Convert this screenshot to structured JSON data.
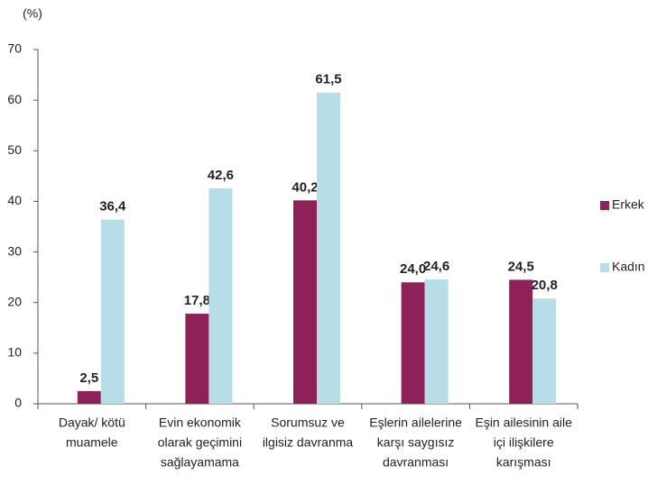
{
  "chart_data": {
    "type": "bar",
    "y_label": "(%)",
    "categories": [
      [
        "Dayak/ kötü",
        "muamele"
      ],
      [
        "Evin ekonomik",
        "olarak geçimini",
        "sağlayamama"
      ],
      [
        "Sorumsuz ve",
        "ilgisiz davranma"
      ],
      [
        "Eşlerin ailelerine",
        "karşı saygısız",
        "davranması"
      ],
      [
        "Eşin ailesinin aile",
        "içi ilişkilere",
        "karışması"
      ]
    ],
    "series": [
      {
        "name": "Erkek",
        "color": "#8e2157",
        "values": [
          2.5,
          17.8,
          40.2,
          24.0,
          24.5
        ],
        "value_labels": [
          "2,5",
          "17,8",
          "40,2",
          "24,0",
          "24,5"
        ]
      },
      {
        "name": "Kadın",
        "color": "#b7dde8",
        "values": [
          36.4,
          42.6,
          61.5,
          24.6,
          20.8
        ],
        "value_labels": [
          "36,4",
          "42,6",
          "61,5",
          "24,6",
          "20,8"
        ]
      }
    ],
    "ylim": [
      0,
      70
    ],
    "yticks": [
      0,
      10,
      20,
      30,
      40,
      50,
      60,
      70
    ],
    "grid": false,
    "legend": "right"
  }
}
